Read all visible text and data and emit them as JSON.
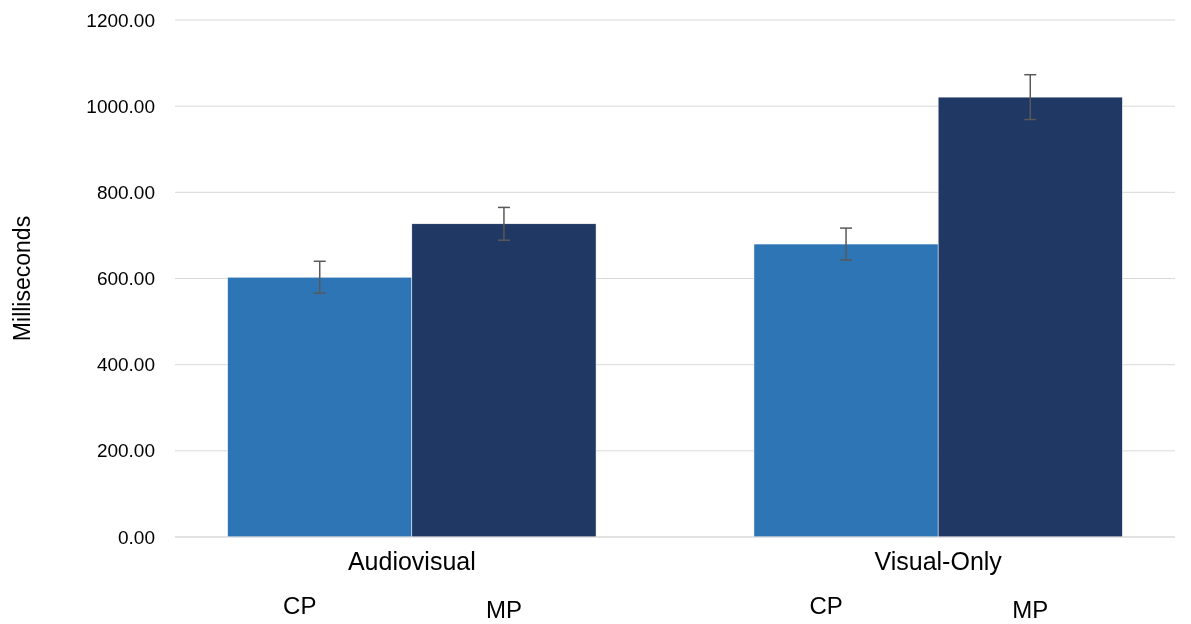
{
  "chart_data": {
    "type": "bar",
    "ylabel": "Milliseconds",
    "categories": [
      "Audiovisual",
      "Visual-Only"
    ],
    "series": [
      {
        "name": "CP",
        "color": "#2e75b6",
        "values": [
          603,
          680
        ],
        "errors": [
          37,
          37
        ]
      },
      {
        "name": "MP",
        "color": "#203864",
        "values": [
          727,
          1021
        ],
        "errors": [
          38,
          52
        ]
      }
    ],
    "ylim": [
      0,
      1200
    ],
    "yticks": [
      {
        "value": 0,
        "label": "0.00"
      },
      {
        "value": 200,
        "label": "200.00"
      },
      {
        "value": 400,
        "label": "400.00"
      },
      {
        "value": 600,
        "label": "600.00"
      },
      {
        "value": 800,
        "label": "800.00"
      },
      {
        "value": 1000,
        "label": "1000.00"
      },
      {
        "value": 1200,
        "label": "1200.00"
      }
    ],
    "grid": "y"
  }
}
